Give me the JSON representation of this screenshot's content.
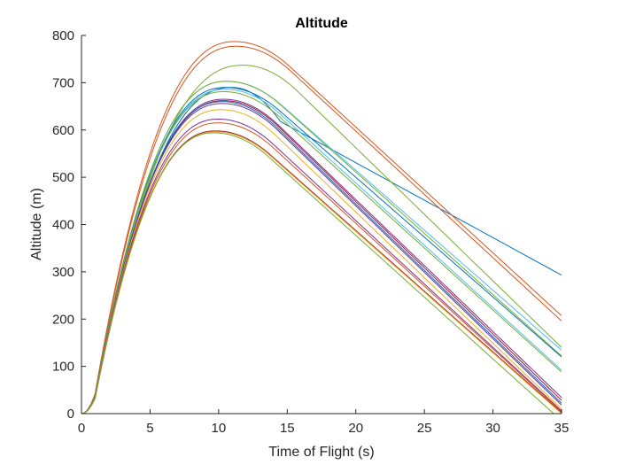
{
  "chart_data": {
    "type": "line",
    "title": "Altitude",
    "xlabel": "Time of Flight (s)",
    "ylabel": "Altitude (m)",
    "xlim": [
      0,
      35
    ],
    "ylim": [
      0,
      800
    ],
    "xticks": [
      0,
      5,
      10,
      15,
      20,
      25,
      30,
      35
    ],
    "yticks": [
      0,
      100,
      200,
      300,
      400,
      500,
      600,
      700,
      800
    ],
    "xtick_labels": [
      "0",
      "5",
      "10",
      "15",
      "20",
      "25",
      "30",
      "35"
    ],
    "ytick_labels": [
      "0",
      "100",
      "200",
      "300",
      "400",
      "500",
      "600",
      "700",
      "800"
    ],
    "grid": false,
    "legend": "none",
    "series": [
      {
        "color": "#0072BD",
        "apex_time": 11.0,
        "apex_alt": 690,
        "end_alt": 293,
        "descent": "drag"
      },
      {
        "color": "#D95319",
        "apex_time": 11.2,
        "apex_alt": 787,
        "end_alt": 207
      },
      {
        "color": "#D95319",
        "apex_time": 11.3,
        "apex_alt": 777,
        "end_alt": 196
      },
      {
        "color": "#77AC30",
        "apex_time": 11.8,
        "apex_alt": 737,
        "end_alt": 140
      },
      {
        "color": "#4DBEEE",
        "apex_time": 10.6,
        "apex_alt": 703,
        "end_alt": 134
      },
      {
        "color": "#77AC30",
        "apex_time": 10.6,
        "apex_alt": 703,
        "end_alt": 122
      },
      {
        "color": "#0072BD",
        "apex_time": 10.5,
        "apex_alt": 690,
        "end_alt": 120
      },
      {
        "color": "#4DBEEE",
        "apex_time": 10.5,
        "apex_alt": 686,
        "end_alt": 92
      },
      {
        "color": "#77AC30",
        "apex_time": 10.4,
        "apex_alt": 681,
        "end_alt": 88
      },
      {
        "color": "#7E2F8E",
        "apex_time": 10.4,
        "apex_alt": 665,
        "end_alt": 34
      },
      {
        "color": "#A2142F",
        "apex_time": 10.4,
        "apex_alt": 662,
        "end_alt": 28
      },
      {
        "color": "#0072BD",
        "apex_time": 10.3,
        "apex_alt": 660,
        "end_alt": 22
      },
      {
        "color": "#7E2F8E",
        "apex_time": 10.3,
        "apex_alt": 656,
        "end_alt": 18
      },
      {
        "color": "#EDB120",
        "apex_time": 10.2,
        "apex_alt": 643,
        "end_alt": 10
      },
      {
        "color": "#7E2F8E",
        "apex_time": 10.0,
        "apex_alt": 623,
        "end_alt": 6
      },
      {
        "color": "#D95319",
        "apex_time": 10.0,
        "apex_alt": 615,
        "end_alt": 4
      },
      {
        "color": "#A2142F",
        "apex_time": 9.8,
        "apex_alt": 598,
        "end_alt": 2
      },
      {
        "color": "#EDB120",
        "apex_time": 9.8,
        "apex_alt": 596,
        "end_alt": 0
      },
      {
        "color": "#77AC30",
        "apex_time": 9.7,
        "apex_alt": 594,
        "end_alt": -15
      }
    ]
  }
}
